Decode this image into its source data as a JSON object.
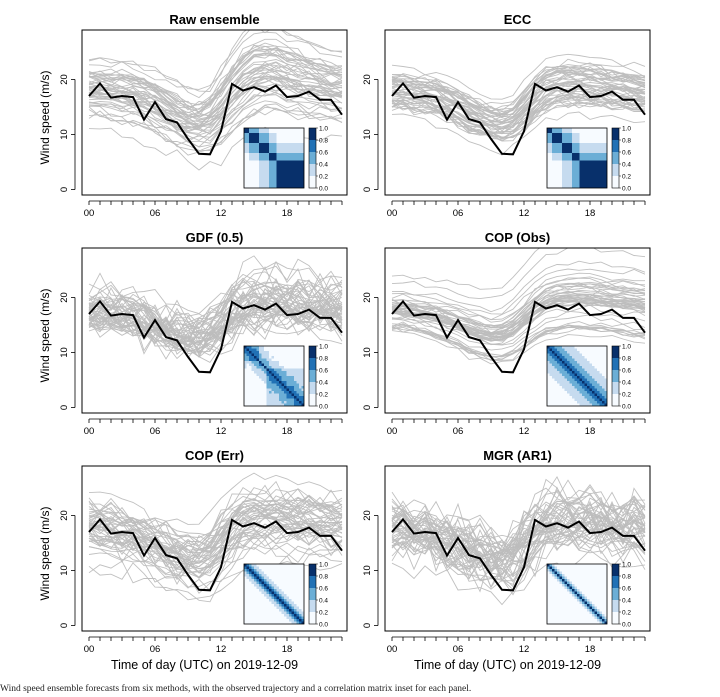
{
  "figure_caption": "Wind speed ensemble forecasts from six methods, with the observed trajectory and a correlation matrix inset for each panel.",
  "chart_data": [
    {
      "id": "raw",
      "type": "line",
      "title": "Raw ensemble",
      "xlabel": "",
      "ylabel": "Wind speed (m/s)",
      "x_ticks": [
        "00",
        "06",
        "12",
        "18"
      ],
      "y_ticks": [
        0,
        10,
        20
      ],
      "ylim": [
        -1,
        29
      ],
      "xlim": [
        0,
        23
      ],
      "ens_center": [
        18.5,
        18.4,
        18.1,
        17.9,
        17.5,
        16.8,
        15.9,
        14.8,
        13.6,
        12.6,
        12.3,
        13.2,
        15.2,
        17.8,
        20.1,
        21.5,
        22.0,
        21.8,
        21.2,
        20.6,
        20.0,
        19.5,
        19.0,
        18.6
      ],
      "ens_spread": [
        2.2,
        2.3,
        2.3,
        2.4,
        2.5,
        2.5,
        2.5,
        2.5,
        2.4,
        2.3,
        2.3,
        2.6,
        3.0,
        3.3,
        3.5,
        3.5,
        3.4,
        3.3,
        3.2,
        3.1,
        3.0,
        2.9,
        2.8,
        2.7
      ],
      "members": 50,
      "noise": 0.5,
      "seed": 101,
      "corr_type": "block",
      "colorbar_ticks": [
        "0.0",
        "0.2",
        "0.4",
        "0.6",
        "0.8",
        "1.0"
      ]
    },
    {
      "id": "ecc",
      "type": "line",
      "title": "ECC",
      "xlabel": "",
      "ylabel": "",
      "x_ticks": [
        "00",
        "06",
        "12",
        "18"
      ],
      "y_ticks": [
        0,
        10,
        20
      ],
      "ylim": [
        -1,
        29
      ],
      "xlim": [
        0,
        23
      ],
      "ens_center": [
        18.0,
        17.9,
        17.6,
        17.3,
        16.8,
        16.0,
        15.1,
        14.0,
        13.0,
        12.2,
        11.9,
        12.6,
        14.5,
        16.8,
        18.4,
        19.1,
        19.3,
        19.2,
        19.0,
        18.8,
        18.5,
        18.2,
        17.9,
        17.6
      ],
      "ens_spread": [
        2.0,
        2.0,
        2.1,
        2.1,
        2.2,
        2.2,
        2.2,
        2.2,
        2.1,
        2.0,
        2.0,
        2.2,
        2.5,
        2.6,
        2.6,
        2.6,
        2.6,
        2.5,
        2.5,
        2.4,
        2.4,
        2.3,
        2.3,
        2.2
      ],
      "members": 50,
      "noise": 0.45,
      "seed": 202,
      "corr_type": "block",
      "colorbar_ticks": [
        "0.0",
        "0.2",
        "0.4",
        "0.6",
        "0.8",
        "1.0"
      ]
    },
    {
      "id": "gdf",
      "type": "line",
      "title": "GDF (0.5)",
      "xlabel": "",
      "ylabel": "Wind speed (m/s)",
      "x_ticks": [
        "00",
        "06",
        "12",
        "18"
      ],
      "y_ticks": [
        0,
        10,
        20
      ],
      "ylim": [
        -1,
        29
      ],
      "xlim": [
        0,
        23
      ],
      "ens_center": [
        17.2,
        17.0,
        16.8,
        16.5,
        16.1,
        15.4,
        14.6,
        13.7,
        12.9,
        12.3,
        12.2,
        13.0,
        14.8,
        16.8,
        18.1,
        18.6,
        18.8,
        18.7,
        18.6,
        18.4,
        18.2,
        18.0,
        17.7,
        17.4
      ],
      "ens_spread": [
        1.8,
        1.9,
        1.9,
        2.0,
        2.0,
        2.0,
        2.0,
        2.0,
        1.9,
        1.9,
        2.0,
        2.3,
        2.7,
        2.9,
        2.9,
        2.9,
        2.8,
        2.8,
        2.7,
        2.7,
        2.6,
        2.6,
        2.5,
        2.5
      ],
      "members": 50,
      "noise": 1.4,
      "seed": 303,
      "corr_type": "gdf",
      "colorbar_ticks": [
        "0.0",
        "0.2",
        "0.4",
        "0.6",
        "0.8",
        "1.0"
      ]
    },
    {
      "id": "copobs",
      "type": "line",
      "title": "COP (Obs)",
      "xlabel": "",
      "ylabel": "",
      "x_ticks": [
        "00",
        "06",
        "12",
        "18"
      ],
      "y_ticks": [
        0,
        10,
        20
      ],
      "ylim": [
        -1,
        29
      ],
      "xlim": [
        0,
        23
      ],
      "ens_center": [
        17.4,
        17.2,
        16.9,
        16.5,
        16.0,
        15.3,
        14.5,
        13.7,
        13.0,
        12.6,
        12.7,
        13.6,
        15.3,
        17.1,
        18.4,
        19.0,
        19.3,
        19.3,
        19.2,
        19.0,
        18.8,
        18.6,
        18.3,
        18.0
      ],
      "ens_spread": [
        1.9,
        2.0,
        2.0,
        2.1,
        2.2,
        2.3,
        2.4,
        2.5,
        2.5,
        2.6,
        2.7,
        2.9,
        3.1,
        3.3,
        3.4,
        3.5,
        3.5,
        3.5,
        3.5,
        3.5,
        3.5,
        3.5,
        3.5,
        3.5
      ],
      "members": 50,
      "noise": 0.3,
      "seed": 404,
      "corr_type": "band_wide",
      "colorbar_ticks": [
        "0.0",
        "0.2",
        "0.4",
        "0.6",
        "0.8",
        "1.0"
      ]
    },
    {
      "id": "coperr",
      "type": "line",
      "title": "COP (Err)",
      "xlabel": "Time of day (UTC) on 2019-12-09",
      "ylabel": "Wind speed (m/s)",
      "x_ticks": [
        "00",
        "06",
        "12",
        "18"
      ],
      "y_ticks": [
        0,
        10,
        20
      ],
      "ylim": [
        -1,
        29
      ],
      "xlim": [
        0,
        23
      ],
      "ens_center": [
        17.8,
        17.5,
        17.1,
        16.6,
        16.0,
        15.2,
        14.3,
        13.3,
        12.4,
        11.8,
        11.7,
        12.6,
        14.6,
        16.8,
        18.3,
        19.0,
        19.3,
        19.3,
        19.1,
        18.9,
        18.6,
        18.3,
        18.0,
        17.7
      ],
      "ens_spread": [
        2.3,
        2.3,
        2.3,
        2.3,
        2.3,
        2.3,
        2.3,
        2.3,
        2.3,
        2.3,
        2.4,
        2.6,
        2.9,
        3.0,
        3.0,
        2.9,
        2.9,
        2.8,
        2.8,
        2.7,
        2.7,
        2.6,
        2.6,
        2.5
      ],
      "members": 50,
      "noise": 1.0,
      "seed": 505,
      "corr_type": "band_med",
      "colorbar_ticks": [
        "0.0",
        "0.2",
        "0.4",
        "0.6",
        "0.8",
        "1.0"
      ]
    },
    {
      "id": "mgr",
      "type": "line",
      "title": "MGR (AR1)",
      "xlabel": "Time of day (UTC) on 2019-12-09",
      "ylabel": "",
      "x_ticks": [
        "00",
        "06",
        "12",
        "18"
      ],
      "y_ticks": [
        0,
        10,
        20
      ],
      "ylim": [
        -1,
        29
      ],
      "xlim": [
        0,
        23
      ],
      "ens_center": [
        17.6,
        17.3,
        16.9,
        16.4,
        15.8,
        15.0,
        14.1,
        13.2,
        12.3,
        11.7,
        11.6,
        12.5,
        14.4,
        16.5,
        17.9,
        18.5,
        18.7,
        18.6,
        18.5,
        18.3,
        18.1,
        17.9,
        17.7,
        17.4
      ],
      "ens_spread": [
        2.2,
        2.2,
        2.2,
        2.2,
        2.2,
        2.2,
        2.2,
        2.2,
        2.2,
        2.2,
        2.3,
        2.5,
        2.7,
        2.8,
        2.8,
        2.7,
        2.7,
        2.6,
        2.6,
        2.6,
        2.5,
        2.5,
        2.5,
        2.4
      ],
      "members": 50,
      "noise": 1.6,
      "seed": 606,
      "corr_type": "band_narrow",
      "colorbar_ticks": [
        "0.0",
        "0.2",
        "0.4",
        "0.6",
        "0.8",
        "1.0"
      ]
    }
  ],
  "observation": {
    "hours": [
      0,
      1,
      2,
      3,
      4,
      5,
      6,
      7,
      8,
      9,
      10,
      11,
      12,
      13,
      14,
      15,
      16,
      17,
      18,
      19,
      20,
      21,
      22,
      23
    ],
    "values": [
      17.0,
      19.3,
      16.7,
      17.0,
      16.8,
      12.7,
      15.9,
      12.8,
      12.2,
      9.2,
      6.5,
      6.4,
      10.6,
      19.2,
      18.0,
      18.6,
      17.8,
      18.9,
      16.8,
      17.0,
      17.8,
      16.3,
      16.3,
      13.6
    ],
    "color": "#000000"
  },
  "colors": {
    "ensemble": "#bdbdbd",
    "observation": "#000000",
    "frame": "#000000",
    "heat": [
      "#f7fbff",
      "#c6dbef",
      "#6baed6",
      "#2171b5",
      "#08306b"
    ]
  }
}
